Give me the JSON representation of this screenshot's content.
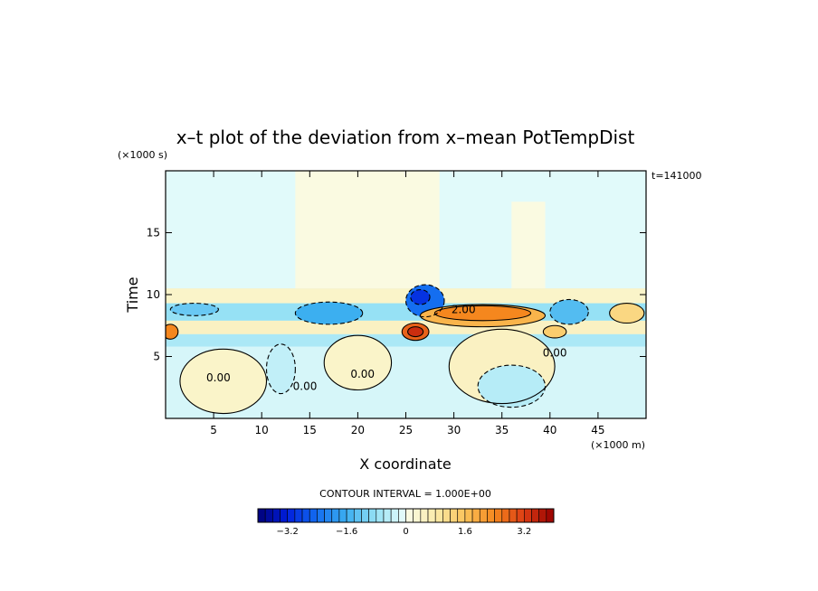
{
  "chart_data": {
    "type": "heatmap",
    "title": "x–t plot of the deviation from x–mean PotTempDist",
    "xlabel": "X coordinate",
    "ylabel": "Time",
    "x_unit": "(×1000 m)",
    "y_unit": "(×1000 s)",
    "time_label": "t=141000",
    "xlim": [
      0,
      50
    ],
    "ylim": [
      0,
      20
    ],
    "xticks": [
      5,
      10,
      15,
      20,
      25,
      30,
      35,
      40,
      45
    ],
    "yticks": [
      5,
      10,
      15
    ],
    "contour_interval_text": "CONTOUR INTERVAL = 1.000E+00",
    "contour_labels": [
      {
        "text": "0.00",
        "x": 5.5,
        "y": 3.0
      },
      {
        "text": "0.00",
        "x": 14.5,
        "y": 2.3
      },
      {
        "text": "0.00",
        "x": 20.5,
        "y": 3.3
      },
      {
        "text": "2.00",
        "x": 31.0,
        "y": 8.5
      },
      {
        "text": "0.00",
        "x": 40.5,
        "y": 5.0
      }
    ],
    "colorbar": {
      "min": -4.0,
      "max": 4.0,
      "step": 0.2,
      "tick_values": [
        -3.2,
        -1.6,
        0,
        1.6,
        3.2
      ],
      "tick_labels": [
        "−3.2",
        "−1.6",
        "0",
        "1.6",
        "3.2"
      ]
    },
    "regions": [
      {
        "kind": "rect",
        "x0": 0,
        "x1": 50,
        "y0": 0,
        "y1": 20,
        "value": -0.2
      },
      {
        "kind": "rect",
        "x0": 0,
        "x1": 50,
        "y0": 10.5,
        "y1": 20,
        "value": -0.1
      },
      {
        "kind": "rect",
        "x0": 13.5,
        "x1": 28.5,
        "y0": 10.5,
        "y1": 20,
        "value": 0.1
      },
      {
        "kind": "rect",
        "x0": 36,
        "x1": 39.5,
        "y0": 10.5,
        "y1": 17.5,
        "value": 0.1
      },
      {
        "kind": "rect",
        "x0": 0,
        "x1": 50,
        "y0": 9.3,
        "y1": 10.5,
        "value": 0.4
      },
      {
        "kind": "rect",
        "x0": 0,
        "x1": 50,
        "y0": 6.8,
        "y1": 7.9,
        "value": 0.5
      },
      {
        "kind": "rect",
        "x0": 0,
        "x1": 50,
        "y0": 5.8,
        "y1": 6.8,
        "value": -0.6
      },
      {
        "kind": "rect",
        "x0": 0,
        "x1": 50,
        "y0": 7.9,
        "y1": 9.3,
        "value": -0.8
      },
      {
        "kind": "ellipse",
        "cx": 17,
        "cy": 8.5,
        "rx": 3.5,
        "ry": 0.9,
        "value": -1.6
      },
      {
        "kind": "ellipse",
        "cx": 27,
        "cy": 9.5,
        "rx": 2.0,
        "ry": 1.3,
        "value": -2.4
      },
      {
        "kind": "ellipse",
        "cx": 26.5,
        "cy": 9.8,
        "rx": 1.0,
        "ry": 0.6,
        "value": -3.0
      },
      {
        "kind": "ellipse",
        "cx": 33,
        "cy": 8.3,
        "rx": 6.5,
        "ry": 0.9,
        "value": 1.8
      },
      {
        "kind": "ellipse",
        "cx": 33,
        "cy": 8.5,
        "rx": 5.0,
        "ry": 0.6,
        "value": 2.4
      },
      {
        "kind": "ellipse",
        "cx": 26,
        "cy": 7.0,
        "rx": 1.4,
        "ry": 0.7,
        "value": 2.8
      },
      {
        "kind": "ellipse",
        "cx": 26,
        "cy": 7.0,
        "rx": 0.8,
        "ry": 0.4,
        "value": 3.4
      },
      {
        "kind": "ellipse",
        "cx": 0.5,
        "cy": 7.0,
        "rx": 0.8,
        "ry": 0.6,
        "value": 2.4
      },
      {
        "kind": "ellipse",
        "cx": 42,
        "cy": 8.6,
        "rx": 2.0,
        "ry": 1.0,
        "value": -1.4
      },
      {
        "kind": "ellipse",
        "cx": 40.5,
        "cy": 7.0,
        "rx": 1.2,
        "ry": 0.5,
        "value": 1.4
      },
      {
        "kind": "ellipse",
        "cx": 48,
        "cy": 8.5,
        "rx": 1.8,
        "ry": 0.8,
        "value": 1.2
      },
      {
        "kind": "ellipse",
        "cx": 6,
        "cy": 3.0,
        "rx": 4.5,
        "ry": 2.6,
        "value": 0.4
      },
      {
        "kind": "ellipse",
        "cx": 20,
        "cy": 4.5,
        "rx": 3.5,
        "ry": 2.2,
        "value": 0.4
      },
      {
        "kind": "ellipse",
        "cx": 35,
        "cy": 4.2,
        "rx": 5.5,
        "ry": 3.0,
        "value": 0.5
      },
      {
        "kind": "ellipse",
        "cx": 36,
        "cy": 2.6,
        "rx": 3.5,
        "ry": 1.7,
        "value": -0.5
      },
      {
        "kind": "ellipse",
        "cx": 12,
        "cy": 4.0,
        "rx": 1.5,
        "ry": 2.0,
        "value": -0.4
      },
      {
        "kind": "ellipse",
        "cx": 3,
        "cy": 8.8,
        "rx": 2.5,
        "ry": 0.5,
        "value": -1.2
      }
    ]
  }
}
